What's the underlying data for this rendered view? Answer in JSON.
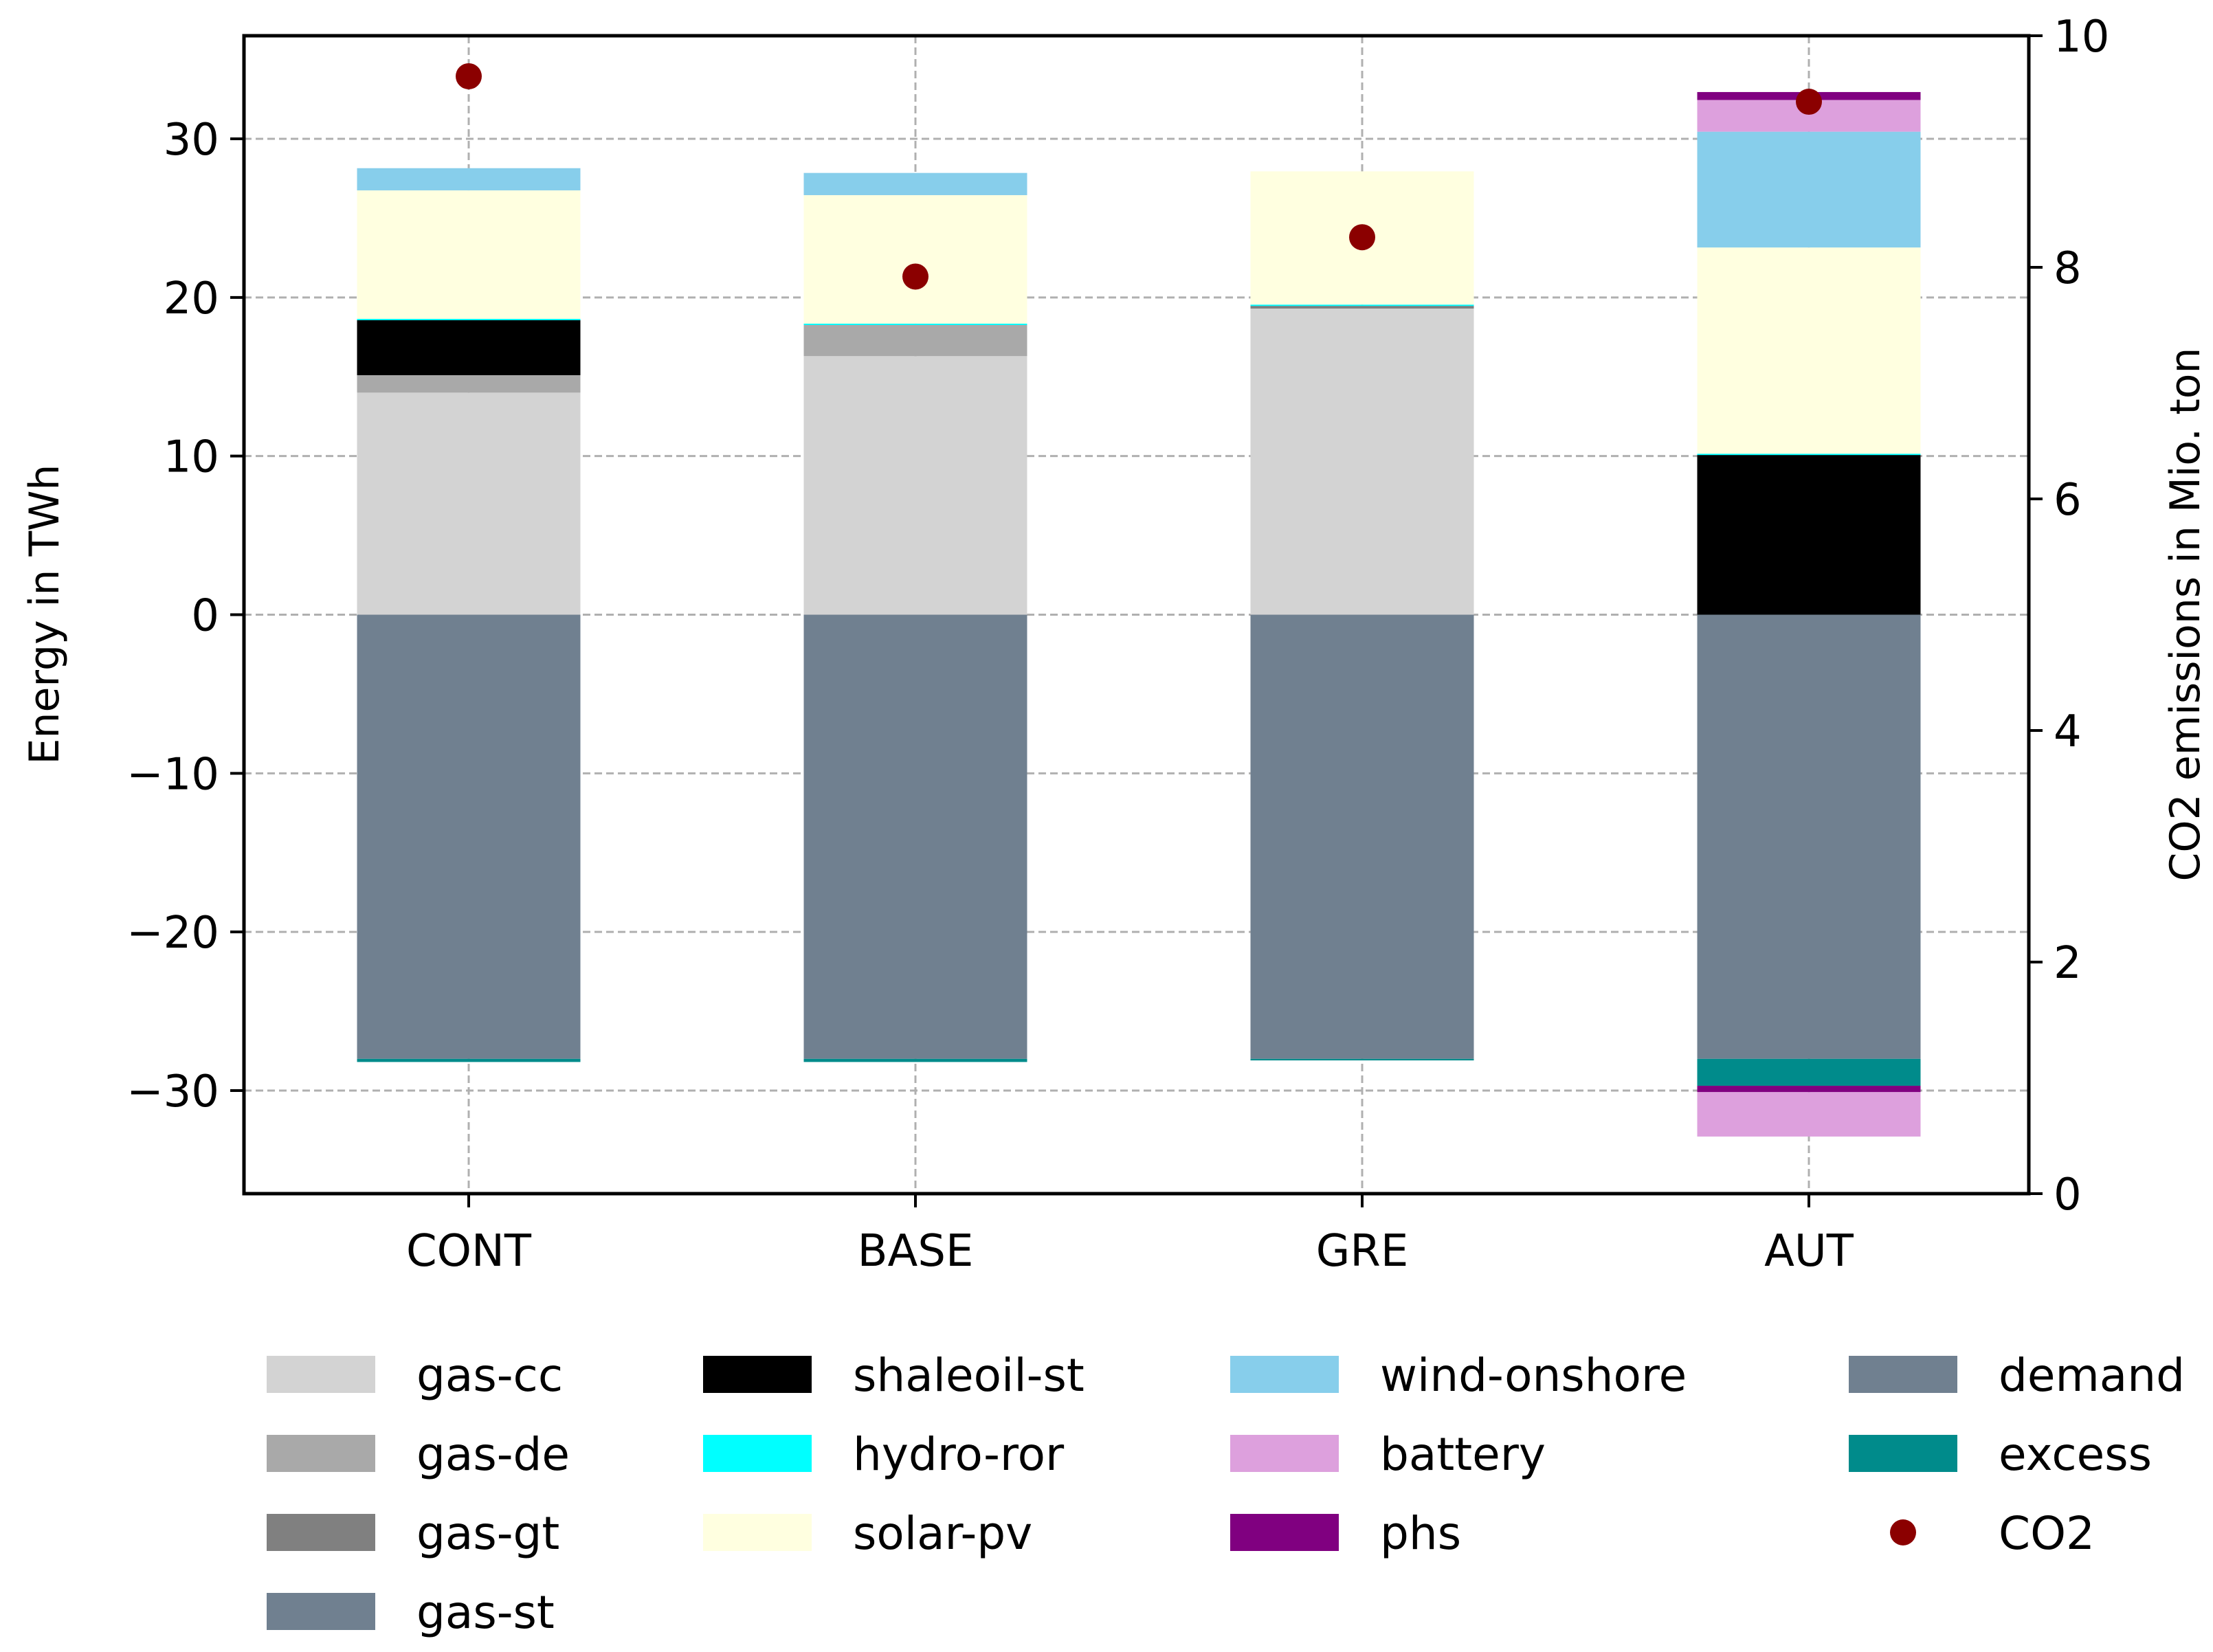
{
  "chart_data": {
    "type": "bar",
    "stacked": true,
    "categories": [
      "CONT",
      "BASE",
      "GRE",
      "AUT"
    ],
    "ylabel": "Energy in TWh",
    "ylabel_right": "CO2 emissions in Mio. ton",
    "ylim": [
      -36.5,
      36.5
    ],
    "yticks": [
      -30,
      -20,
      -10,
      0,
      10,
      20,
      30
    ],
    "ytick_labels": [
      "−30",
      "−20",
      "−10",
      "0",
      "10",
      "20",
      "30"
    ],
    "ylim_right": [
      0,
      10
    ],
    "yticks_right": [
      0,
      2,
      4,
      6,
      8,
      10
    ],
    "grid": true,
    "legend_position": "bottom",
    "series": [
      {
        "name": "gas-cc",
        "color": "#d3d3d3",
        "values": [
          14.0,
          16.3,
          19.3,
          0
        ]
      },
      {
        "name": "gas-de",
        "color": "#a9a9a9",
        "values": [
          1.1,
          2.0,
          0,
          0
        ]
      },
      {
        "name": "gas-gt",
        "color": "#808080",
        "values": [
          0,
          0,
          0.2,
          0
        ]
      },
      {
        "name": "gas-st",
        "color": "#708090",
        "values": [
          0,
          0,
          0,
          0
        ]
      },
      {
        "name": "shaleoil-st",
        "color": "#000000",
        "values": [
          3.5,
          0,
          0,
          10.1
        ]
      },
      {
        "name": "hydro-ror",
        "color": "#00ffff",
        "values": [
          0.05,
          0.05,
          0.05,
          0.05
        ]
      },
      {
        "name": "solar-pv",
        "color": "#ffffe0",
        "values": [
          8.1,
          8.1,
          8.4,
          13.0
        ]
      },
      {
        "name": "wind-onshore",
        "color": "#87ceeb",
        "values": [
          1.4,
          1.4,
          0,
          7.3
        ]
      },
      {
        "name": "battery",
        "color": "#dda0dd",
        "values": [
          0,
          0,
          0,
          2.0
        ]
      },
      {
        "name": "phs",
        "color": "#800080",
        "values": [
          0,
          0,
          0,
          0.5
        ]
      },
      {
        "name": "demand",
        "color": "#708090",
        "values": [
          -28.0,
          -28.0,
          -28.0,
          -28.0
        ]
      },
      {
        "name": "excess",
        "color": "#008b8b",
        "values": [
          -0.2,
          -0.2,
          -0.1,
          -1.7
        ]
      },
      {
        "name": "phs",
        "color": "#800080",
        "values": [
          0,
          0,
          0,
          -0.4
        ]
      },
      {
        "name": "battery",
        "color": "#dda0dd",
        "values": [
          0,
          0,
          0,
          -2.8
        ]
      }
    ],
    "co2": {
      "name": "CO2",
      "color": "#8b0000",
      "values": [
        9.65,
        7.92,
        8.26,
        9.43
      ]
    },
    "legend": {
      "columns": [
        [
          {
            "label": "gas-cc",
            "color": "#d3d3d3",
            "kind": "patch"
          },
          {
            "label": "gas-de",
            "color": "#a9a9a9",
            "kind": "patch"
          },
          {
            "label": "gas-gt",
            "color": "#808080",
            "kind": "patch"
          },
          {
            "label": "gas-st",
            "color": "#708090",
            "kind": "patch"
          }
        ],
        [
          {
            "label": "shaleoil-st",
            "color": "#000000",
            "kind": "patch"
          },
          {
            "label": "hydro-ror",
            "color": "#00ffff",
            "kind": "patch"
          },
          {
            "label": "solar-pv",
            "color": "#ffffe0",
            "kind": "patch"
          }
        ],
        [
          {
            "label": "wind-onshore",
            "color": "#87ceeb",
            "kind": "patch"
          },
          {
            "label": "battery",
            "color": "#dda0dd",
            "kind": "patch"
          },
          {
            "label": "phs",
            "color": "#800080",
            "kind": "patch"
          }
        ],
        [
          {
            "label": "demand",
            "color": "#708090",
            "kind": "patch"
          },
          {
            "label": "excess",
            "color": "#008b8b",
            "kind": "patch"
          },
          {
            "label": "CO2",
            "color": "#8b0000",
            "kind": "marker"
          }
        ]
      ]
    }
  }
}
